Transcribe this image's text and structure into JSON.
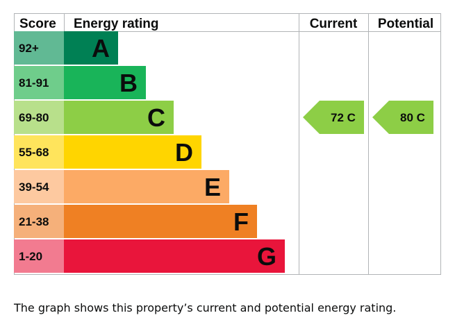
{
  "chart_data": {
    "type": "bar",
    "headers": {
      "score": "Score",
      "energy_rating": "Energy rating",
      "current": "Current",
      "potential": "Potential"
    },
    "bands": [
      {
        "score": "92+",
        "letter": "A",
        "color": "#008054",
        "score_bg": "#61b994"
      },
      {
        "score": "81-91",
        "letter": "B",
        "color": "#19b459",
        "score_bg": "#6fcd8b"
      },
      {
        "score": "69-80",
        "letter": "C",
        "color": "#8dce46",
        "score_bg": "#b8e08b"
      },
      {
        "score": "55-68",
        "letter": "D",
        "color": "#ffd500",
        "score_bg": "#ffe45c"
      },
      {
        "score": "39-54",
        "letter": "E",
        "color": "#fcaa65",
        "score_bg": "#fdc9a0"
      },
      {
        "score": "21-38",
        "letter": "F",
        "color": "#ef8023",
        "score_bg": "#f5b07a"
      },
      {
        "score": "1-20",
        "letter": "G",
        "color": "#e9153b",
        "score_bg": "#f27b90"
      }
    ],
    "current": {
      "value": 72,
      "band": "C",
      "label": "72  C",
      "color": "#8dce46"
    },
    "potential": {
      "value": 80,
      "band": "C",
      "label": "80  C",
      "color": "#8dce46"
    }
  },
  "caption": "The graph shows this property’s current and potential energy rating."
}
